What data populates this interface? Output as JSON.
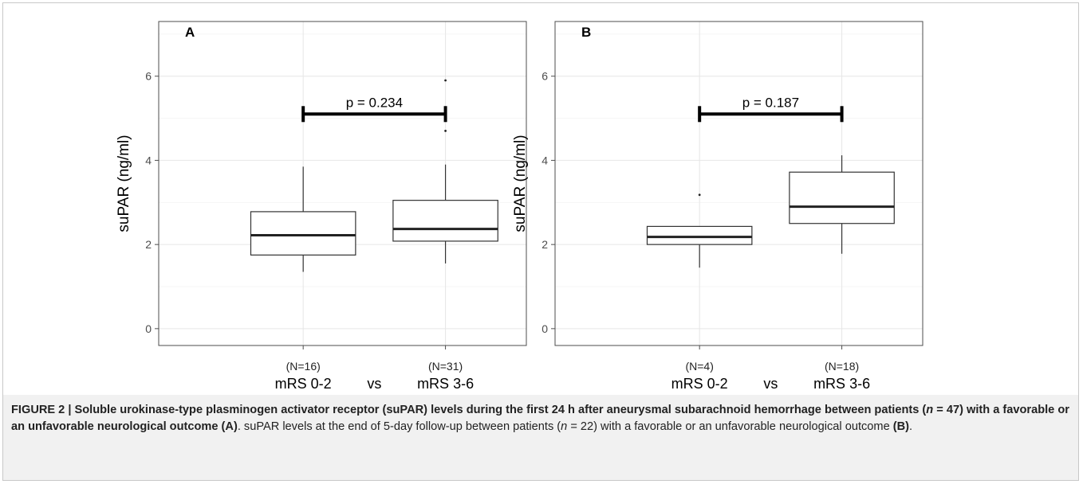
{
  "chart_data": [
    {
      "type": "box",
      "panel_label": "A",
      "ylabel": "suPAR (ng/ml)",
      "ylim": [
        -0.4,
        7.3
      ],
      "yticks": [
        0,
        2,
        4,
        6
      ],
      "grid": true,
      "categories": [
        "mRS 0-2",
        "mRS 3-6"
      ],
      "n_labels": [
        "(N=16)",
        "(N=31)"
      ],
      "separator": "vs",
      "boxes": [
        {
          "min": 1.35,
          "q1": 1.75,
          "median": 2.22,
          "q3": 2.78,
          "max": 3.85,
          "outliers": []
        },
        {
          "min": 1.55,
          "q1": 2.08,
          "median": 2.37,
          "q3": 3.05,
          "max": 3.9,
          "outliers": [
            4.7,
            5.9
          ]
        }
      ],
      "comparison": {
        "label": "p = 0.234",
        "y": 5.1
      }
    },
    {
      "type": "box",
      "panel_label": "B",
      "ylabel": "suPAR (ng/ml)",
      "ylim": [
        -0.4,
        7.3
      ],
      "yticks": [
        0,
        2,
        4,
        6
      ],
      "grid": true,
      "categories": [
        "mRS 0-2",
        "mRS 3-6"
      ],
      "n_labels": [
        "(N=4)",
        "(N=18)"
      ],
      "separator": "vs",
      "boxes": [
        {
          "min": 1.45,
          "q1": 2.0,
          "median": 2.18,
          "q3": 2.43,
          "max": 2.43,
          "outliers": [
            3.18
          ]
        },
        {
          "min": 1.78,
          "q1": 2.5,
          "median": 2.9,
          "q3": 3.72,
          "max": 4.12,
          "outliers": []
        }
      ],
      "comparison": {
        "label": "p = 0.187",
        "y": 5.1
      }
    }
  ],
  "caption": {
    "fig": "FIGURE 2",
    "sep": " | ",
    "title_pre": "Soluble urokinase-type plasminogen activator receptor (suPAR) levels during the first 24 h after aneurysmal subarachnoid hemorrhage between patients (",
    "n_var": "n",
    "title_n": " = 47) with a favorable or an unfavorable neurological outcome (A)",
    "rest1": ". suPAR levels at the end of 5-day follow-up between patients (",
    "n_var2": "n",
    "rest2": " = 22) with a favorable or an unfavorable neurological outcome ",
    "bold_b": "(B)",
    "end": "."
  }
}
